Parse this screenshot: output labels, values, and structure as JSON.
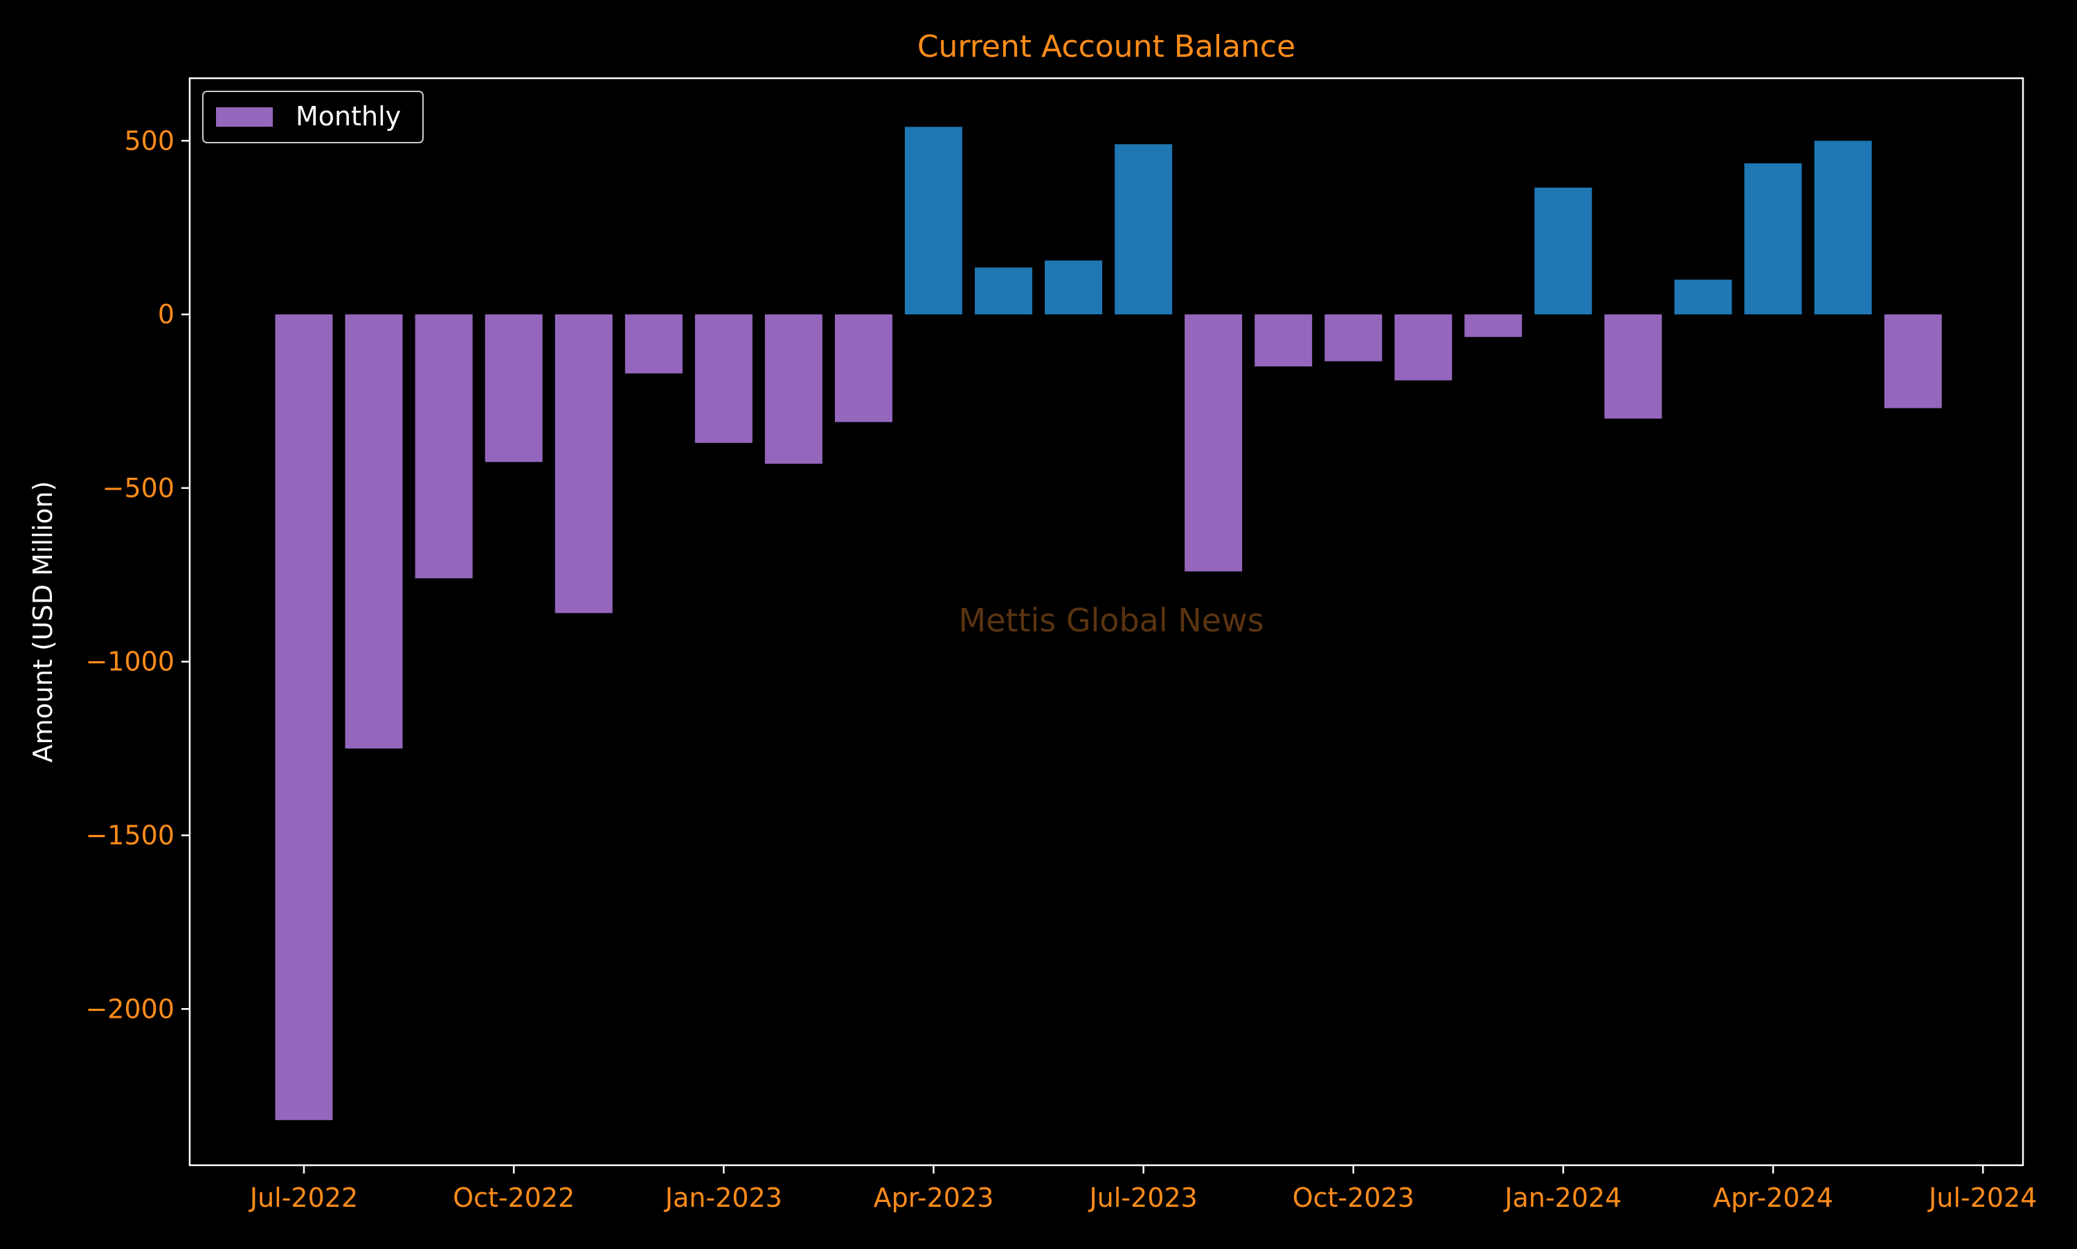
{
  "chart_data": {
    "type": "bar",
    "title": "Current Account Balance",
    "xlabel": "",
    "ylabel": "Amount (USD Million)",
    "x_tick_labels": [
      "Jul-2022",
      "Oct-2022",
      "Jan-2023",
      "Apr-2023",
      "Jul-2023",
      "Oct-2023",
      "Jan-2024",
      "Apr-2024",
      "Jul-2024"
    ],
    "y_ticks": [
      500,
      0,
      -500,
      -1000,
      -1500,
      -2000
    ],
    "y_tick_labels": [
      "500",
      "0",
      "−500",
      "−1000",
      "−1500",
      "−2000"
    ],
    "ylim": [
      -2450,
      680
    ],
    "grid": false,
    "legend": {
      "entries": [
        "Monthly"
      ],
      "position": "top-left"
    },
    "annotation": "Mettis Global News",
    "categories": [
      "Jul-2022",
      "Aug-2022",
      "Sep-2022",
      "Oct-2022",
      "Nov-2022",
      "Dec-2022",
      "Jan-2023",
      "Feb-2023",
      "Mar-2023",
      "Apr-2023",
      "May-2023",
      "Jun-2023",
      "Jul-2023",
      "Aug-2023",
      "Sep-2023",
      "Oct-2023",
      "Nov-2023",
      "Dec-2023",
      "Jan-2024",
      "Feb-2024",
      "Mar-2024",
      "Apr-2024",
      "May-2024",
      "Jun-2024"
    ],
    "series": [
      {
        "name": "Monthly",
        "values": [
          -2320,
          -1250,
          -760,
          -425,
          -860,
          -170,
          -370,
          -430,
          -310,
          540,
          135,
          155,
          490,
          -740,
          -150,
          -135,
          -190,
          -65,
          365,
          -300,
          100,
          435,
          500,
          -270
        ]
      }
    ],
    "colors": {
      "negative": "#9467bd",
      "positive": "#1f77b4",
      "title": "#ff8c1a",
      "tick_labels": "#ff8c1a",
      "axis": "#ffffff",
      "ylabel": "#ffffff",
      "annotation": "#5a3410",
      "background": "#000000"
    }
  }
}
